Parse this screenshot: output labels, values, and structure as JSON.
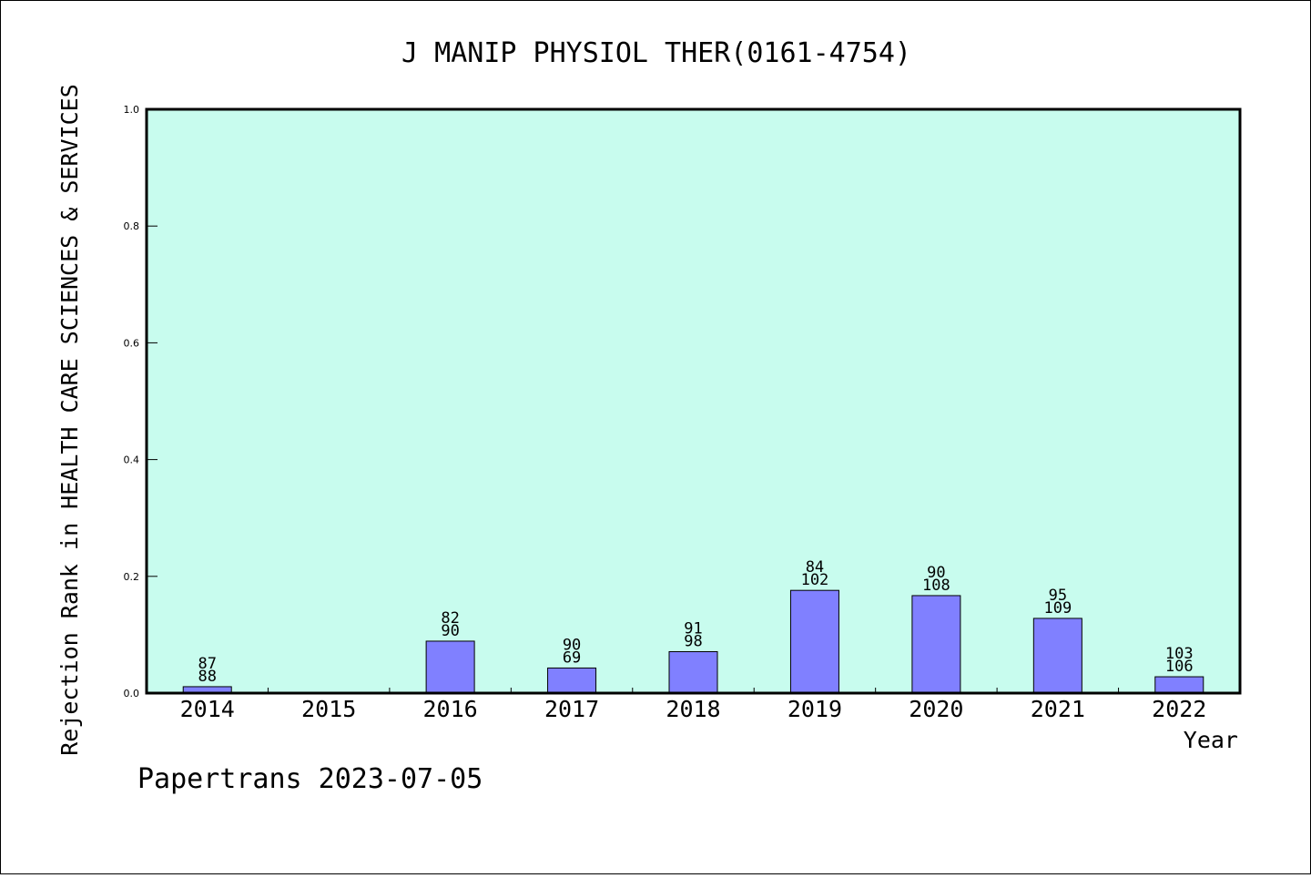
{
  "chart_data": {
    "type": "bar",
    "title": "J MANIP PHYSIOL THER(0161-4754)",
    "ylabel": "Rejection Rank in HEALTH CARE SCIENCES & SERVICES",
    "xlabel": "Year",
    "credit": "Papertrans 2023-07-05",
    "ylim": [
      0,
      1.0
    ],
    "yticks": [
      0.0,
      0.2,
      0.4,
      0.6,
      0.8,
      1.0
    ],
    "ytick_labels": [
      "0.0",
      "0.2",
      "0.4",
      "0.6",
      "0.8",
      "1.0"
    ],
    "categories": [
      "2014",
      "2015",
      "2016",
      "2017",
      "2018",
      "2019",
      "2020",
      "2021",
      "2022"
    ],
    "values": [
      0.011,
      null,
      0.089,
      0.043,
      0.071,
      0.176,
      0.167,
      0.128,
      0.028
    ],
    "labels_top": [
      "87",
      "",
      "82",
      "90",
      "91",
      "84",
      "90",
      "95",
      "103"
    ],
    "labels_bottom": [
      "88",
      "",
      "90",
      "69",
      "98",
      "102",
      "108",
      "109",
      "106"
    ],
    "grid": false,
    "colors": {
      "plot_bg": "#c8fcee",
      "bar": "#8080ff",
      "bar_edge": "#000000"
    }
  }
}
